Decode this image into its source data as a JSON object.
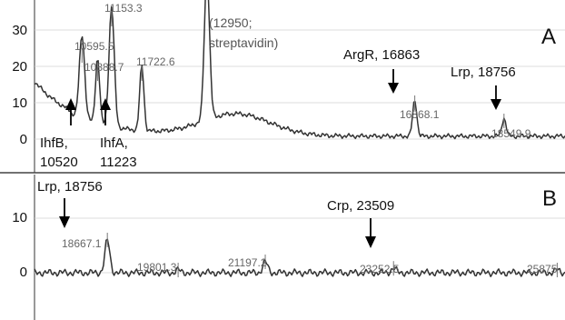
{
  "chart_data": [
    {
      "type": "line",
      "panel_label": "A",
      "y_ticks": [
        "30",
        "20",
        "10",
        "0"
      ],
      "ylim": [
        -3,
        36
      ],
      "xlim": [
        9700,
        19700
      ],
      "peaks": [
        {
          "x": 10595.5,
          "label": "10595.5",
          "height": 23
        },
        {
          "x": 10888.7,
          "label": "10888.7",
          "height": 18
        },
        {
          "x": 11153.3,
          "label": "11153.3",
          "height": 33
        },
        {
          "x": 11722.6,
          "label": "11722.6",
          "height": 18
        },
        {
          "x": 12950,
          "label": "",
          "height": 40
        },
        {
          "x": 16868.1,
          "label": "16868.1",
          "height": 10
        },
        {
          "x": 18549.9,
          "label": "18549.9",
          "height": 5
        }
      ],
      "annotations": [
        {
          "id": "streptavidin",
          "text_lines": [
            "(12950;",
            "streptavidin)"
          ]
        },
        {
          "id": "argr",
          "text_lines": [
            "ArgR, 16863"
          ]
        },
        {
          "id": "lrp",
          "text_lines": [
            "Lrp, 18756"
          ]
        },
        {
          "id": "ihfb",
          "text_lines": [
            "IhfB,",
            "10520"
          ]
        },
        {
          "id": "ihfa",
          "text_lines": [
            "IhfA,",
            "11223"
          ]
        }
      ]
    },
    {
      "type": "line",
      "panel_label": "B",
      "y_ticks": [
        "10",
        "0"
      ],
      "ylim": [
        -4,
        16
      ],
      "xlim": [
        17500,
        26000
      ],
      "peaks": [
        {
          "x": 18667.1,
          "label": "18667.1",
          "height": 6
        },
        {
          "x": 19801.3,
          "label": "19801.3",
          "height": 0.5
        },
        {
          "x": 21197.2,
          "label": "21197.2",
          "height": 2
        },
        {
          "x": 23252.5,
          "label": "23252.5",
          "height": 0.8
        },
        {
          "x": 25875,
          "label": "25875",
          "height": 0.5
        }
      ],
      "annotations": [
        {
          "id": "lrp",
          "text_lines": [
            "Lrp, 18756"
          ]
        },
        {
          "id": "crp",
          "text_lines": [
            "Crp, 23509"
          ]
        }
      ]
    }
  ]
}
